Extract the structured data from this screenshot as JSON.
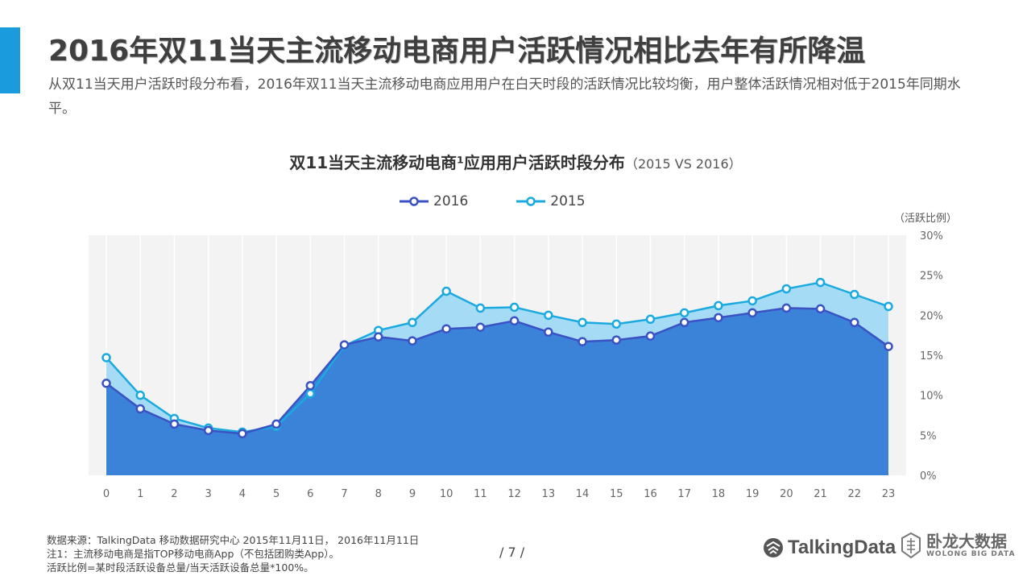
{
  "slide": {
    "title": "2016年双11当天主流移动电商用户活跃情况相比去年有所降温",
    "subtitle": "从双11当天用户活跃时段分布看，2016年双11当天主流移动电商应用用户在白天时段的活跃情况比较均衡，用户整体活跃情况相对低于2015年同期水平。",
    "page_number": "/ 7 /"
  },
  "footer": {
    "source": "数据来源：TalkingData 移动数据研究中心 2015年11月11日， 2016年11月11日",
    "note1": "注1：主流移动电商是指TOP移动电商App（不包括团购类App）。",
    "note2": "活跃比例=某时段活跃设备总量/当天活跃设备总量*100%。"
  },
  "logos": {
    "talkingdata": "TalkingData",
    "wolong_cn": "卧龙大数据",
    "wolong_en": "WOLONG BIG DATA"
  },
  "chart_data": {
    "type": "area",
    "title": "双11当天主流移动电商¹应用用户活跃时段分布",
    "title_suffix": "（2015 VS 2016）",
    "unit_label": "（活跃比例）",
    "x": [
      0,
      1,
      2,
      3,
      4,
      5,
      6,
      7,
      8,
      9,
      10,
      11,
      12,
      13,
      14,
      15,
      16,
      17,
      18,
      19,
      20,
      21,
      22,
      23
    ],
    "ylim": [
      0,
      30
    ],
    "yticks": [
      "0%",
      "5%",
      "10%",
      "15%",
      "20%",
      "25%",
      "30%"
    ],
    "legend_position": "top",
    "grid": true,
    "series": [
      {
        "name": "2016",
        "color": "#3a52c4",
        "fill": "#3b82d9",
        "values": [
          11.5,
          8.3,
          6.4,
          5.6,
          5.2,
          6.4,
          11.2,
          16.3,
          17.3,
          16.8,
          18.3,
          18.5,
          19.3,
          17.9,
          16.7,
          16.9,
          17.4,
          19.1,
          19.7,
          20.3,
          20.9,
          20.8,
          19.1,
          16.1
        ]
      },
      {
        "name": "2015",
        "color": "#1aaae0",
        "fill": "#a6dbf5",
        "values": [
          14.7,
          10.0,
          7.1,
          5.9,
          5.4,
          6.1,
          10.2,
          16.2,
          18.1,
          19.1,
          23.0,
          20.9,
          21.0,
          20.0,
          19.1,
          18.9,
          19.5,
          20.3,
          21.2,
          21.8,
          23.3,
          24.1,
          22.6,
          21.1
        ]
      }
    ]
  }
}
